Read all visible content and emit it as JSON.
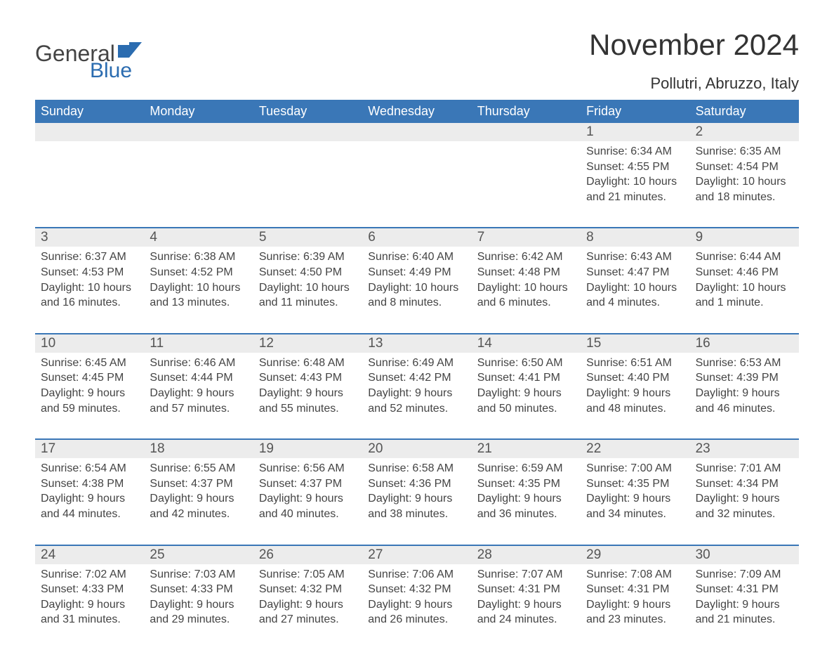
{
  "logo": {
    "word1": "General",
    "word2": "Blue"
  },
  "title": "November 2024",
  "location": "Pollutri, Abruzzo, Italy",
  "weekdays": [
    "Sunday",
    "Monday",
    "Tuesday",
    "Wednesday",
    "Thursday",
    "Friday",
    "Saturday"
  ],
  "colors": {
    "header_bg": "#3a77b7",
    "gray_row": "#ececec",
    "logo_blue": "#2b6cb0"
  },
  "weeks": [
    [
      null,
      null,
      null,
      null,
      null,
      {
        "n": "1",
        "sunrise": "Sunrise: 6:34 AM",
        "sunset": "Sunset: 4:55 PM",
        "day1": "Daylight: 10 hours",
        "day2": "and 21 minutes."
      },
      {
        "n": "2",
        "sunrise": "Sunrise: 6:35 AM",
        "sunset": "Sunset: 4:54 PM",
        "day1": "Daylight: 10 hours",
        "day2": "and 18 minutes."
      }
    ],
    [
      {
        "n": "3",
        "sunrise": "Sunrise: 6:37 AM",
        "sunset": "Sunset: 4:53 PM",
        "day1": "Daylight: 10 hours",
        "day2": "and 16 minutes."
      },
      {
        "n": "4",
        "sunrise": "Sunrise: 6:38 AM",
        "sunset": "Sunset: 4:52 PM",
        "day1": "Daylight: 10 hours",
        "day2": "and 13 minutes."
      },
      {
        "n": "5",
        "sunrise": "Sunrise: 6:39 AM",
        "sunset": "Sunset: 4:50 PM",
        "day1": "Daylight: 10 hours",
        "day2": "and 11 minutes."
      },
      {
        "n": "6",
        "sunrise": "Sunrise: 6:40 AM",
        "sunset": "Sunset: 4:49 PM",
        "day1": "Daylight: 10 hours",
        "day2": "and 8 minutes."
      },
      {
        "n": "7",
        "sunrise": "Sunrise: 6:42 AM",
        "sunset": "Sunset: 4:48 PM",
        "day1": "Daylight: 10 hours",
        "day2": "and 6 minutes."
      },
      {
        "n": "8",
        "sunrise": "Sunrise: 6:43 AM",
        "sunset": "Sunset: 4:47 PM",
        "day1": "Daylight: 10 hours",
        "day2": "and 4 minutes."
      },
      {
        "n": "9",
        "sunrise": "Sunrise: 6:44 AM",
        "sunset": "Sunset: 4:46 PM",
        "day1": "Daylight: 10 hours",
        "day2": "and 1 minute."
      }
    ],
    [
      {
        "n": "10",
        "sunrise": "Sunrise: 6:45 AM",
        "sunset": "Sunset: 4:45 PM",
        "day1": "Daylight: 9 hours",
        "day2": "and 59 minutes."
      },
      {
        "n": "11",
        "sunrise": "Sunrise: 6:46 AM",
        "sunset": "Sunset: 4:44 PM",
        "day1": "Daylight: 9 hours",
        "day2": "and 57 minutes."
      },
      {
        "n": "12",
        "sunrise": "Sunrise: 6:48 AM",
        "sunset": "Sunset: 4:43 PM",
        "day1": "Daylight: 9 hours",
        "day2": "and 55 minutes."
      },
      {
        "n": "13",
        "sunrise": "Sunrise: 6:49 AM",
        "sunset": "Sunset: 4:42 PM",
        "day1": "Daylight: 9 hours",
        "day2": "and 52 minutes."
      },
      {
        "n": "14",
        "sunrise": "Sunrise: 6:50 AM",
        "sunset": "Sunset: 4:41 PM",
        "day1": "Daylight: 9 hours",
        "day2": "and 50 minutes."
      },
      {
        "n": "15",
        "sunrise": "Sunrise: 6:51 AM",
        "sunset": "Sunset: 4:40 PM",
        "day1": "Daylight: 9 hours",
        "day2": "and 48 minutes."
      },
      {
        "n": "16",
        "sunrise": "Sunrise: 6:53 AM",
        "sunset": "Sunset: 4:39 PM",
        "day1": "Daylight: 9 hours",
        "day2": "and 46 minutes."
      }
    ],
    [
      {
        "n": "17",
        "sunrise": "Sunrise: 6:54 AM",
        "sunset": "Sunset: 4:38 PM",
        "day1": "Daylight: 9 hours",
        "day2": "and 44 minutes."
      },
      {
        "n": "18",
        "sunrise": "Sunrise: 6:55 AM",
        "sunset": "Sunset: 4:37 PM",
        "day1": "Daylight: 9 hours",
        "day2": "and 42 minutes."
      },
      {
        "n": "19",
        "sunrise": "Sunrise: 6:56 AM",
        "sunset": "Sunset: 4:37 PM",
        "day1": "Daylight: 9 hours",
        "day2": "and 40 minutes."
      },
      {
        "n": "20",
        "sunrise": "Sunrise: 6:58 AM",
        "sunset": "Sunset: 4:36 PM",
        "day1": "Daylight: 9 hours",
        "day2": "and 38 minutes."
      },
      {
        "n": "21",
        "sunrise": "Sunrise: 6:59 AM",
        "sunset": "Sunset: 4:35 PM",
        "day1": "Daylight: 9 hours",
        "day2": "and 36 minutes."
      },
      {
        "n": "22",
        "sunrise": "Sunrise: 7:00 AM",
        "sunset": "Sunset: 4:35 PM",
        "day1": "Daylight: 9 hours",
        "day2": "and 34 minutes."
      },
      {
        "n": "23",
        "sunrise": "Sunrise: 7:01 AM",
        "sunset": "Sunset: 4:34 PM",
        "day1": "Daylight: 9 hours",
        "day2": "and 32 minutes."
      }
    ],
    [
      {
        "n": "24",
        "sunrise": "Sunrise: 7:02 AM",
        "sunset": "Sunset: 4:33 PM",
        "day1": "Daylight: 9 hours",
        "day2": "and 31 minutes."
      },
      {
        "n": "25",
        "sunrise": "Sunrise: 7:03 AM",
        "sunset": "Sunset: 4:33 PM",
        "day1": "Daylight: 9 hours",
        "day2": "and 29 minutes."
      },
      {
        "n": "26",
        "sunrise": "Sunrise: 7:05 AM",
        "sunset": "Sunset: 4:32 PM",
        "day1": "Daylight: 9 hours",
        "day2": "and 27 minutes."
      },
      {
        "n": "27",
        "sunrise": "Sunrise: 7:06 AM",
        "sunset": "Sunset: 4:32 PM",
        "day1": "Daylight: 9 hours",
        "day2": "and 26 minutes."
      },
      {
        "n": "28",
        "sunrise": "Sunrise: 7:07 AM",
        "sunset": "Sunset: 4:31 PM",
        "day1": "Daylight: 9 hours",
        "day2": "and 24 minutes."
      },
      {
        "n": "29",
        "sunrise": "Sunrise: 7:08 AM",
        "sunset": "Sunset: 4:31 PM",
        "day1": "Daylight: 9 hours",
        "day2": "and 23 minutes."
      },
      {
        "n": "30",
        "sunrise": "Sunrise: 7:09 AM",
        "sunset": "Sunset: 4:31 PM",
        "day1": "Daylight: 9 hours",
        "day2": "and 21 minutes."
      }
    ]
  ]
}
